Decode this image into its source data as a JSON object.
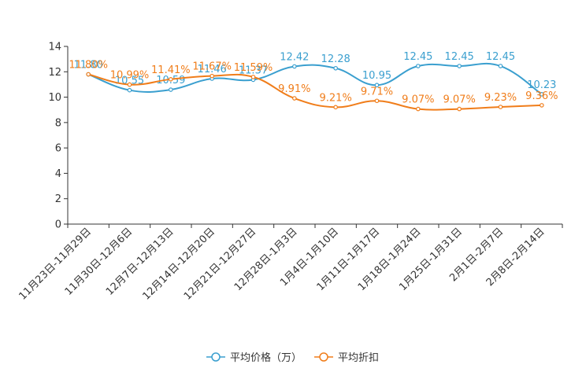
{
  "chart_data": {
    "type": "line",
    "title": "",
    "xlabel": "",
    "ylabel": "",
    "ylim": [
      0,
      14
    ],
    "yticks": [
      "0",
      "2",
      "4",
      "6",
      "8",
      "10",
      "12",
      "14"
    ],
    "categories": [
      "11月23日-11月29日",
      "11月30日-12月6日",
      "12月7日-12月13日",
      "12月14日-12月20日",
      "12月21日-12月27日",
      "12月28日-1月3日",
      "1月4日-1月10日",
      "1月11日-1月17日",
      "1月18日-1月24日",
      "1月25日-1月31日",
      "2月1日-2月7日",
      "2月8日-2月14日"
    ],
    "series": [
      {
        "name": "平均价格（万）",
        "color": "#3a9fcf",
        "values": [
          11.8,
          10.55,
          10.59,
          11.46,
          11.37,
          12.42,
          12.28,
          10.95,
          12.45,
          12.45,
          12.45,
          10.23
        ],
        "labels": [
          "11.80",
          "10.55",
          "10.59",
          "11.46",
          "11.37",
          "12.42",
          "12.28",
          "10.95",
          "12.45",
          "12.45",
          "12.45",
          "10.23"
        ]
      },
      {
        "name": "平均折扣",
        "color": "#f07d1a",
        "values": [
          11.8,
          10.99,
          11.41,
          11.67,
          11.59,
          9.91,
          9.21,
          9.71,
          9.07,
          9.07,
          9.23,
          9.36
        ],
        "labels": [
          "11.80%",
          "10.99%",
          "11.41%",
          "11.67%",
          "11.59%",
          "9.91%",
          "9.21%",
          "9.71%",
          "9.07%",
          "9.07%",
          "9.23%",
          "9.36%"
        ]
      }
    ],
    "legend_position": "bottom-center"
  }
}
